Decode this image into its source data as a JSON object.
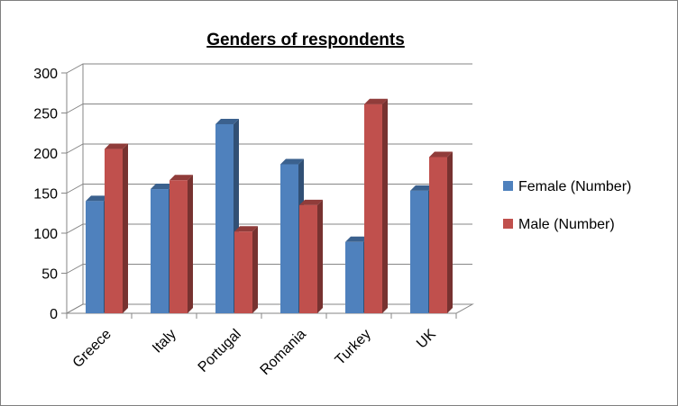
{
  "chart_data": {
    "type": "bar",
    "title": "Genders of respondents",
    "categories": [
      "Greece",
      "Italy",
      "Portugal",
      "Romania",
      "Turkey",
      "UK"
    ],
    "series": [
      {
        "name": "Female (Number)",
        "values": [
          140,
          155,
          236,
          186,
          89,
          153
        ],
        "color": "#4f81bd"
      },
      {
        "name": "Male (Number)",
        "values": [
          205,
          166,
          102,
          135,
          261,
          195
        ],
        "color": "#c0504d"
      }
    ],
    "ylim": [
      0,
      300
    ],
    "yticks": [
      "0",
      "50",
      "100",
      "150",
      "200",
      "250",
      "300"
    ],
    "grid": true,
    "legend_position": "right",
    "style": "3d-clustered-column"
  }
}
